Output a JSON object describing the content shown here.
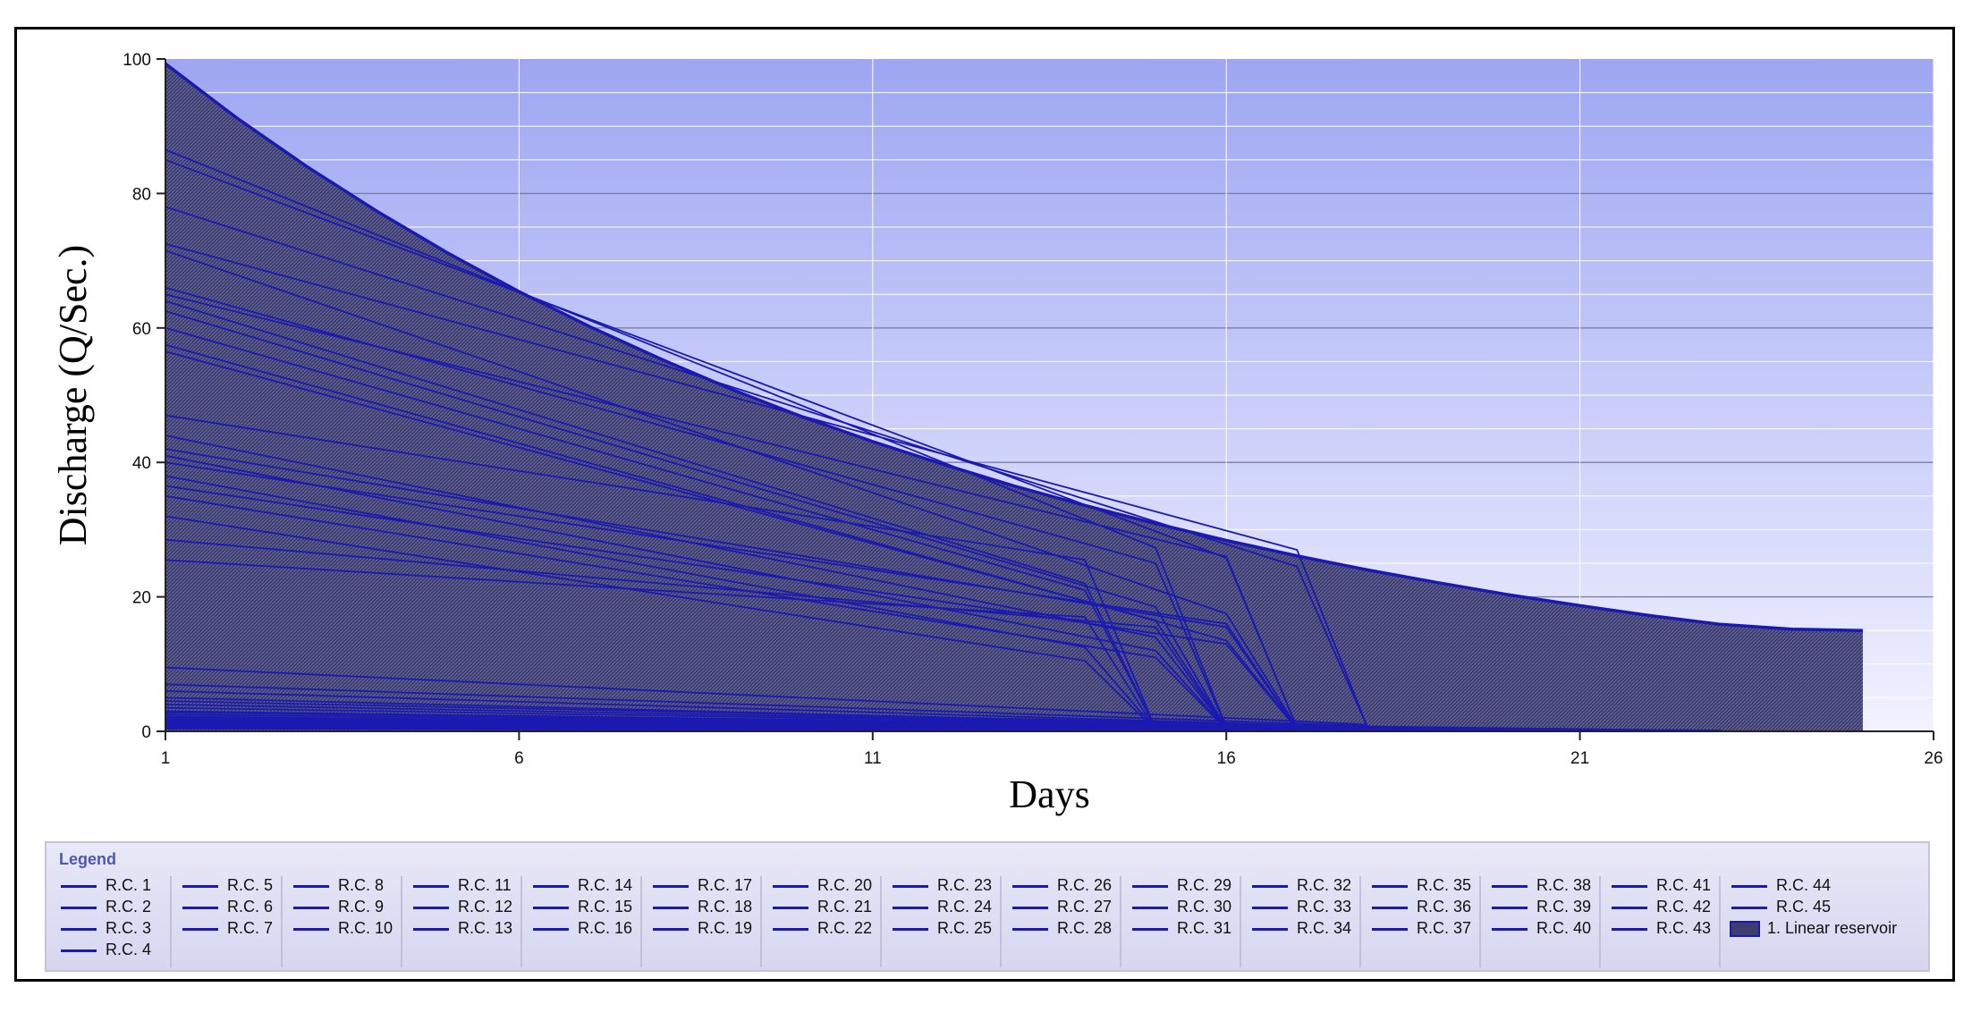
{
  "chart_data": {
    "type": "area",
    "xlabel": "Days",
    "ylabel": "Discharge (Q/Sec.)",
    "xlim": [
      1,
      26
    ],
    "ylim": [
      0,
      100
    ],
    "xticks": [
      1,
      6,
      11,
      16,
      21,
      26
    ],
    "yticks": [
      0,
      20,
      40,
      60,
      80,
      100
    ],
    "grid": true,
    "colors": {
      "line": "#1a1ab3",
      "area": "#3d3d70",
      "bg_top": "#9ea6f2",
      "bg_bottom": "#f2f2ff"
    },
    "area_series": {
      "name": "1. Linear reservoir",
      "x": [
        1,
        2,
        3,
        4,
        5,
        6,
        7,
        8,
        9,
        10,
        11,
        12,
        13,
        14,
        15,
        16,
        17,
        18,
        19,
        20,
        21,
        22,
        23,
        24,
        25
      ],
      "values": [
        99.3,
        91.3,
        84.0,
        77.3,
        71.1,
        65.4,
        60.2,
        55.4,
        50.9,
        46.8,
        43.1,
        39.7,
        36.5,
        33.6,
        30.9,
        28.4,
        26.1,
        24.0,
        22.1,
        20.3,
        18.7,
        17.2,
        15.9,
        15.2,
        15.0
      ]
    },
    "line_series": [
      {
        "name": "R.C. 1",
        "x": [
          1,
          15,
          16
        ],
        "values": [
          86.5,
          27.3,
          0.6
        ]
      },
      {
        "name": "R.C. 2",
        "x": [
          1,
          16,
          17
        ],
        "values": [
          85.0,
          25.8,
          0.5
        ]
      },
      {
        "name": "R.C. 3",
        "x": [
          1,
          17,
          18
        ],
        "values": [
          78.0,
          24.5,
          0.5
        ]
      },
      {
        "name": "R.C. 4",
        "x": [
          1,
          17,
          18
        ],
        "values": [
          72.5,
          27.0,
          0.5
        ]
      },
      {
        "name": "R.C. 5",
        "x": [
          1,
          16,
          17
        ],
        "values": [
          71.5,
          17.5,
          0.5
        ]
      },
      {
        "name": "R.C. 6",
        "x": [
          1,
          15,
          16
        ],
        "values": [
          66.0,
          25.0,
          0.5
        ]
      },
      {
        "name": "R.C. 7",
        "x": [
          1,
          16,
          17
        ],
        "values": [
          65.0,
          26.0,
          0.5
        ]
      },
      {
        "name": "R.C. 8",
        "x": [
          1,
          14,
          15
        ],
        "values": [
          64.0,
          22.0,
          0.4
        ]
      },
      {
        "name": "R.C. 9",
        "x": [
          1,
          15,
          16
        ],
        "values": [
          62.5,
          18.5,
          0.4
        ]
      },
      {
        "name": "R.C. 10",
        "x": [
          1,
          14,
          15
        ],
        "values": [
          60.0,
          21.0,
          0.4
        ]
      },
      {
        "name": "R.C. 11",
        "x": [
          1,
          16,
          17
        ],
        "values": [
          57.5,
          13.5,
          0.4
        ]
      },
      {
        "name": "R.C. 12",
        "x": [
          1,
          15,
          16
        ],
        "values": [
          56.5,
          16.5,
          0.4
        ]
      },
      {
        "name": "R.C. 13",
        "x": [
          1,
          14,
          15
        ],
        "values": [
          47.0,
          25.5,
          0.4
        ]
      },
      {
        "name": "R.C. 14",
        "x": [
          1,
          15,
          16
        ],
        "values": [
          44.0,
          14.0,
          0.3
        ]
      },
      {
        "name": "R.C. 15",
        "x": [
          1,
          16,
          17
        ],
        "values": [
          42.0,
          15.5,
          0.3
        ]
      },
      {
        "name": "R.C. 16",
        "x": [
          1,
          15,
          16
        ],
        "values": [
          41.0,
          12.0,
          0.3
        ]
      },
      {
        "name": "R.C. 17",
        "x": [
          1,
          16,
          17
        ],
        "values": [
          40.0,
          16.0,
          0.3
        ]
      },
      {
        "name": "R.C. 18",
        "x": [
          1,
          14,
          15
        ],
        "values": [
          38.0,
          12.5,
          0.3
        ]
      },
      {
        "name": "R.C. 19",
        "x": [
          1,
          16,
          17
        ],
        "values": [
          36.5,
          13.0,
          0.3
        ]
      },
      {
        "name": "R.C. 20",
        "x": [
          1,
          15,
          16
        ],
        "values": [
          35.0,
          11.0,
          0.3
        ]
      },
      {
        "name": "R.C. 21",
        "x": [
          1,
          14,
          15
        ],
        "values": [
          32.0,
          10.5,
          0.2
        ]
      },
      {
        "name": "R.C. 22",
        "x": [
          1,
          15,
          16
        ],
        "values": [
          28.5,
          15.5,
          0.2
        ]
      },
      {
        "name": "R.C. 23",
        "x": [
          1,
          14,
          15
        ],
        "values": [
          25.5,
          17.0,
          0.2
        ]
      },
      {
        "name": "R.C. 24",
        "x": [
          1,
          18
        ],
        "values": [
          9.5,
          1.0
        ]
      },
      {
        "name": "R.C. 25",
        "x": [
          1,
          18
        ],
        "values": [
          7.0,
          0.8
        ]
      },
      {
        "name": "R.C. 26",
        "x": [
          1,
          18
        ],
        "values": [
          6.0,
          0.6
        ]
      },
      {
        "name": "R.C. 27",
        "x": [
          1,
          18
        ],
        "values": [
          5.0,
          0.5
        ]
      },
      {
        "name": "R.C. 28",
        "x": [
          1,
          20
        ],
        "values": [
          4.5,
          0.3
        ]
      },
      {
        "name": "R.C. 29",
        "x": [
          1,
          20
        ],
        "values": [
          4.0,
          0.3
        ]
      },
      {
        "name": "R.C. 30",
        "x": [
          1,
          21
        ],
        "values": [
          3.5,
          0.2
        ]
      },
      {
        "name": "R.C. 31",
        "x": [
          1,
          21
        ],
        "values": [
          3.0,
          0.2
        ]
      },
      {
        "name": "R.C. 32",
        "x": [
          1,
          23
        ],
        "values": [
          2.8,
          0.1
        ]
      },
      {
        "name": "R.C. 33",
        "x": [
          1,
          23
        ],
        "values": [
          2.5,
          0.1
        ]
      },
      {
        "name": "R.C. 34",
        "x": [
          1,
          23
        ],
        "values": [
          2.2,
          0.1
        ]
      },
      {
        "name": "R.C. 35",
        "x": [
          1,
          22
        ],
        "values": [
          2.0,
          0.1
        ]
      },
      {
        "name": "R.C. 36",
        "x": [
          1,
          22
        ],
        "values": [
          1.8,
          0.1
        ]
      },
      {
        "name": "R.C. 37",
        "x": [
          1,
          21
        ],
        "values": [
          1.6,
          0.1
        ]
      },
      {
        "name": "R.C. 38",
        "x": [
          1,
          21
        ],
        "values": [
          1.4,
          0.1
        ]
      },
      {
        "name": "R.C. 39",
        "x": [
          1,
          20
        ],
        "values": [
          1.2,
          0.1
        ]
      },
      {
        "name": "R.C. 40",
        "x": [
          1,
          20
        ],
        "values": [
          1.0,
          0.1
        ]
      },
      {
        "name": "R.C. 41",
        "x": [
          1,
          19
        ],
        "values": [
          0.9,
          0.1
        ]
      },
      {
        "name": "R.C. 42",
        "x": [
          1,
          19
        ],
        "values": [
          0.8,
          0.1
        ]
      },
      {
        "name": "R.C. 43",
        "x": [
          1,
          18
        ],
        "values": [
          0.6,
          0.1
        ]
      },
      {
        "name": "R.C. 44",
        "x": [
          1,
          18
        ],
        "values": [
          0.5,
          0.0
        ]
      },
      {
        "name": "R.C. 45",
        "x": [
          1,
          17
        ],
        "values": [
          0.4,
          0.0
        ]
      }
    ]
  },
  "legend": {
    "title": "Legend",
    "columns": [
      [
        "R.C. 1",
        "R.C. 2",
        "R.C. 3",
        "R.C. 4"
      ],
      [
        "R.C. 5",
        "R.C. 6",
        "R.C. 7"
      ],
      [
        "R.C. 8",
        "R.C. 9",
        "R.C. 10"
      ],
      [
        "R.C. 11",
        "R.C. 12",
        "R.C. 13"
      ],
      [
        "R.C. 14",
        "R.C. 15",
        "R.C. 16"
      ],
      [
        "R.C. 17",
        "R.C. 18",
        "R.C. 19"
      ],
      [
        "R.C. 20",
        "R.C. 21",
        "R.C. 22"
      ],
      [
        "R.C. 23",
        "R.C. 24",
        "R.C. 25"
      ],
      [
        "R.C. 26",
        "R.C. 27",
        "R.C. 28"
      ],
      [
        "R.C. 29",
        "R.C. 30",
        "R.C. 31"
      ],
      [
        "R.C. 32",
        "R.C. 33",
        "R.C. 34"
      ],
      [
        "R.C. 35",
        "R.C. 36",
        "R.C. 37"
      ],
      [
        "R.C. 38",
        "R.C. 39",
        "R.C. 40"
      ],
      [
        "R.C. 41",
        "R.C. 42",
        "R.C. 43"
      ],
      [
        "R.C. 44",
        "R.C. 45",
        "1. Linear reservoir"
      ]
    ]
  }
}
